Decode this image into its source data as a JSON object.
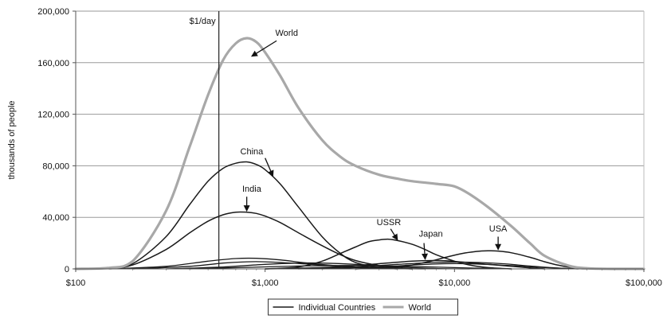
{
  "chart_data": {
    "type": "line",
    "xscale": "log",
    "xlim": [
      100,
      100000
    ],
    "ylim": [
      0,
      200000
    ],
    "xticks": [
      {
        "value": 100,
        "label": "$100"
      },
      {
        "value": 1000,
        "label": "$1,000"
      },
      {
        "value": 10000,
        "label": "$10,000"
      },
      {
        "value": 100000,
        "label": "$100,000"
      }
    ],
    "yticks": [
      {
        "value": 0,
        "label": "0"
      },
      {
        "value": 40000,
        "label": "40,000"
      },
      {
        "value": 80000,
        "label": "80,000"
      },
      {
        "value": 120000,
        "label": "120,000"
      },
      {
        "value": 160000,
        "label": "160,000"
      },
      {
        "value": 200000,
        "label": "200,000"
      }
    ],
    "ylabel": "thousands of people",
    "grid": "horizontal",
    "legend": {
      "position": "bottom-center",
      "entries": [
        {
          "name": "Individual Countries",
          "color": "#1a1a1a"
        },
        {
          "name": "World",
          "color": "#a8a8a8"
        }
      ]
    },
    "reference_lines": [
      {
        "x": 570,
        "label": "$1/day"
      }
    ],
    "series": [
      {
        "name": "World",
        "color": "#a8a8a8",
        "width": 3.2,
        "points": [
          [
            100,
            0
          ],
          [
            150,
            800
          ],
          [
            200,
            6000
          ],
          [
            300,
            45000
          ],
          [
            400,
            95000
          ],
          [
            500,
            135000
          ],
          [
            600,
            162000
          ],
          [
            700,
            175000
          ],
          [
            800,
            179000
          ],
          [
            900,
            176000
          ],
          [
            1000,
            168000
          ],
          [
            1200,
            150000
          ],
          [
            1500,
            125000
          ],
          [
            2000,
            100000
          ],
          [
            2500,
            87000
          ],
          [
            3000,
            80000
          ],
          [
            4000,
            73000
          ],
          [
            5000,
            70000
          ],
          [
            6000,
            68000
          ],
          [
            8000,
            66000
          ],
          [
            10000,
            64000
          ],
          [
            12000,
            58000
          ],
          [
            15000,
            48000
          ],
          [
            20000,
            33000
          ],
          [
            25000,
            20000
          ],
          [
            30000,
            10000
          ],
          [
            40000,
            2500
          ],
          [
            50000,
            500
          ],
          [
            70000,
            0
          ],
          [
            100000,
            0
          ]
        ]
      },
      {
        "name": "China",
        "color": "#1a1a1a",
        "width": 1.5,
        "points": [
          [
            100,
            0
          ],
          [
            150,
            500
          ],
          [
            200,
            4000
          ],
          [
            300,
            25000
          ],
          [
            400,
            50000
          ],
          [
            500,
            68000
          ],
          [
            600,
            78000
          ],
          [
            700,
            82000
          ],
          [
            800,
            83000
          ],
          [
            900,
            81000
          ],
          [
            1000,
            77000
          ],
          [
            1200,
            66000
          ],
          [
            1500,
            48000
          ],
          [
            2000,
            25000
          ],
          [
            2500,
            12000
          ],
          [
            3000,
            5000
          ],
          [
            4000,
            1000
          ],
          [
            5000,
            0
          ]
        ]
      },
      {
        "name": "India",
        "color": "#1a1a1a",
        "width": 1.5,
        "points": [
          [
            100,
            0
          ],
          [
            150,
            400
          ],
          [
            200,
            3000
          ],
          [
            300,
            15000
          ],
          [
            400,
            28000
          ],
          [
            500,
            37000
          ],
          [
            600,
            42000
          ],
          [
            700,
            44000
          ],
          [
            800,
            44000
          ],
          [
            900,
            43000
          ],
          [
            1000,
            41000
          ],
          [
            1200,
            36000
          ],
          [
            1500,
            28000
          ],
          [
            2000,
            18000
          ],
          [
            2500,
            11000
          ],
          [
            3000,
            6500
          ],
          [
            4000,
            2500
          ],
          [
            5000,
            800
          ],
          [
            6000,
            0
          ]
        ]
      },
      {
        "name": "USSR",
        "color": "#1a1a1a",
        "width": 1.5,
        "points": [
          [
            1000,
            0
          ],
          [
            1500,
            1500
          ],
          [
            2000,
            6000
          ],
          [
            2500,
            12000
          ],
          [
            3000,
            17000
          ],
          [
            3500,
            21000
          ],
          [
            4000,
            22500
          ],
          [
            4500,
            23000
          ],
          [
            5000,
            22000
          ],
          [
            6000,
            19000
          ],
          [
            7000,
            15000
          ],
          [
            8000,
            11000
          ],
          [
            10000,
            6000
          ],
          [
            12000,
            3000
          ],
          [
            15000,
            1000
          ],
          [
            20000,
            0
          ]
        ]
      },
      {
        "name": "Japan",
        "color": "#1a1a1a",
        "width": 1.5,
        "points": [
          [
            1000,
            0
          ],
          [
            2000,
            1000
          ],
          [
            3000,
            2500
          ],
          [
            4000,
            4000
          ],
          [
            5000,
            5200
          ],
          [
            6000,
            6000
          ],
          [
            7000,
            6400
          ],
          [
            8000,
            6500
          ],
          [
            9000,
            6300
          ],
          [
            10000,
            5800
          ],
          [
            12000,
            4800
          ],
          [
            15000,
            3500
          ],
          [
            20000,
            2000
          ],
          [
            25000,
            800
          ],
          [
            30000,
            0
          ]
        ]
      },
      {
        "name": "USA",
        "color": "#1a1a1a",
        "width": 1.5,
        "points": [
          [
            3000,
            0
          ],
          [
            5000,
            1500
          ],
          [
            7000,
            5000
          ],
          [
            9000,
            9000
          ],
          [
            11000,
            12000
          ],
          [
            13000,
            13500
          ],
          [
            15000,
            14000
          ],
          [
            17000,
            13800
          ],
          [
            20000,
            12500
          ],
          [
            25000,
            9000
          ],
          [
            30000,
            5500
          ],
          [
            35000,
            3000
          ],
          [
            40000,
            1500
          ],
          [
            50000,
            300
          ],
          [
            60000,
            0
          ]
        ]
      },
      {
        "name": "",
        "color": "#1a1a1a",
        "width": 1.3,
        "points": [
          [
            150,
            0
          ],
          [
            300,
            2000
          ],
          [
            500,
            6000
          ],
          [
            700,
            8000
          ],
          [
            900,
            8200
          ],
          [
            1200,
            7000
          ],
          [
            1800,
            4000
          ],
          [
            3000,
            1500
          ],
          [
            5000,
            300
          ],
          [
            7000,
            0
          ]
        ]
      },
      {
        "name": "",
        "color": "#1a1a1a",
        "width": 1.3,
        "points": [
          [
            200,
            0
          ],
          [
            400,
            2000
          ],
          [
            600,
            4500
          ],
          [
            800,
            5500
          ],
          [
            1000,
            5500
          ],
          [
            1500,
            4200
          ],
          [
            2500,
            2000
          ],
          [
            4000,
            600
          ],
          [
            6000,
            0
          ]
        ]
      },
      {
        "name": "",
        "color": "#1a1a1a",
        "width": 1.3,
        "points": [
          [
            300,
            0
          ],
          [
            600,
            1500
          ],
          [
            1000,
            3500
          ],
          [
            1500,
            4500
          ],
          [
            2000,
            4500
          ],
          [
            3000,
            3500
          ],
          [
            5000,
            1500
          ],
          [
            8000,
            300
          ],
          [
            12000,
            0
          ]
        ]
      },
      {
        "name": "",
        "color": "#1a1a1a",
        "width": 1.3,
        "points": [
          [
            1500,
            0
          ],
          [
            3000,
            1500
          ],
          [
            5000,
            3500
          ],
          [
            8000,
            5000
          ],
          [
            12000,
            5200
          ],
          [
            18000,
            4000
          ],
          [
            25000,
            2200
          ],
          [
            35000,
            700
          ],
          [
            50000,
            0
          ]
        ]
      },
      {
        "name": "",
        "color": "#1a1a1a",
        "width": 1.3,
        "points": [
          [
            2000,
            0
          ],
          [
            4000,
            1500
          ],
          [
            6000,
            3000
          ],
          [
            9000,
            4000
          ],
          [
            13000,
            3800
          ],
          [
            20000,
            2500
          ],
          [
            30000,
            1000
          ],
          [
            45000,
            0
          ]
        ]
      },
      {
        "name": "",
        "color": "#1a1a1a",
        "width": 1.3,
        "points": [
          [
            400,
            0
          ],
          [
            800,
            1200
          ],
          [
            1500,
            2200
          ],
          [
            2500,
            2600
          ],
          [
            4000,
            2400
          ],
          [
            7000,
            1600
          ],
          [
            12000,
            700
          ],
          [
            20000,
            0
          ]
        ]
      }
    ],
    "annotations": [
      {
        "text": "World",
        "label_x": 1300,
        "label_y": 181000,
        "arrow_from": [
          1150,
          177000
        ],
        "arrow_to": [
          850,
          165000
        ]
      },
      {
        "text": "China",
        "label_x": 850,
        "label_y": 89000,
        "arrow_from": [
          1000,
          86000
        ],
        "arrow_to": [
          1100,
          72000
        ]
      },
      {
        "text": "India",
        "label_x": 850,
        "label_y": 60000,
        "arrow_from": [
          800,
          56000
        ],
        "arrow_to": [
          800,
          45000
        ]
      },
      {
        "text": "USSR",
        "label_x": 4500,
        "label_y": 34000,
        "arrow_from": [
          4600,
          31000
        ],
        "arrow_to": [
          5000,
          22500
        ]
      },
      {
        "text": "Japan",
        "label_x": 7500,
        "label_y": 25000,
        "arrow_from": [
          6900,
          20000
        ],
        "arrow_to": [
          7000,
          7500
        ]
      },
      {
        "text": "USA",
        "label_x": 17000,
        "label_y": 29000,
        "arrow_from": [
          17000,
          25000
        ],
        "arrow_to": [
          17000,
          15000
        ]
      }
    ]
  }
}
